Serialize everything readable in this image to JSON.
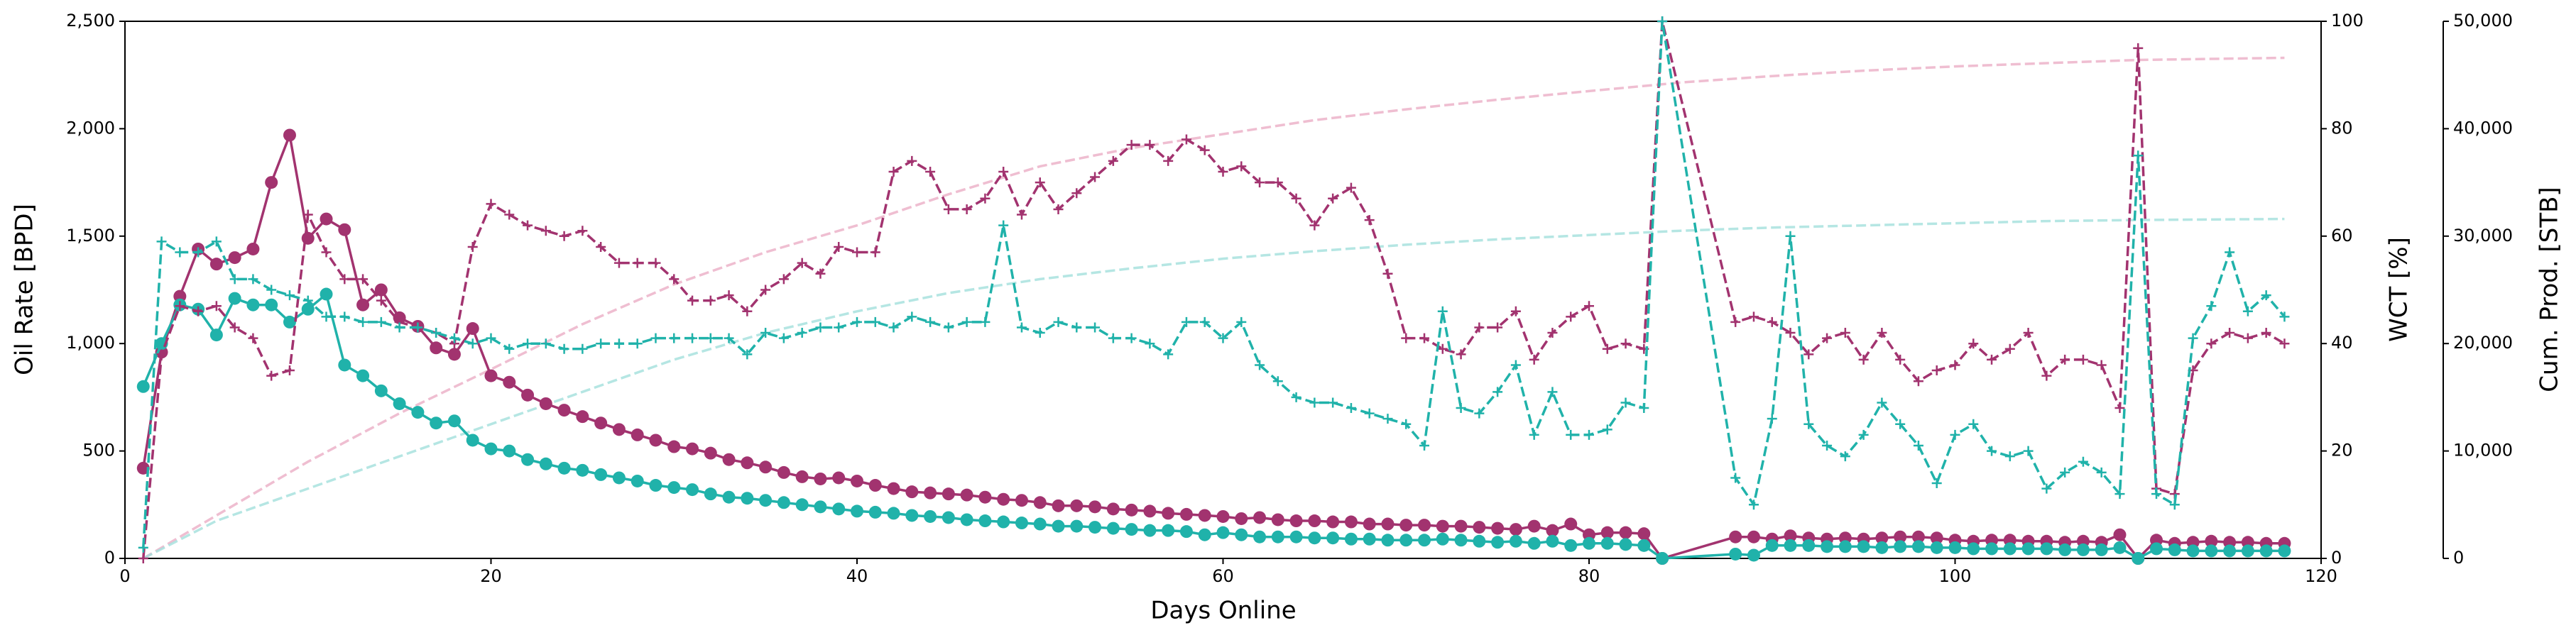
{
  "chart_data": {
    "type": "line",
    "xlabel": "Days Online",
    "ylabel": "Oil Rate [BPD]",
    "y2label": "WCT [%]",
    "y3label": "Cum. Prod. [STB]",
    "xlim": [
      0,
      120
    ],
    "xticks": [
      0,
      20,
      40,
      60,
      80,
      100,
      120
    ],
    "ylim": [
      0,
      2500
    ],
    "yticks": [
      0,
      500,
      {
        "value": 1000,
        "label": "1,000"
      },
      {
        "value": 1500,
        "label": "1,500"
      },
      {
        "value": 2000,
        "label": "2,000"
      },
      {
        "value": 2500,
        "label": "2,500"
      }
    ],
    "y2lim": [
      0,
      100
    ],
    "y2ticks": [
      0,
      20,
      40,
      60,
      80,
      100
    ],
    "y3lim": [
      0,
      50000
    ],
    "y3ticks": [
      0,
      {
        "value": 10000,
        "label": "10,000"
      },
      {
        "value": 20000,
        "label": "20,000"
      },
      {
        "value": 30000,
        "label": "30,000"
      },
      {
        "value": 40000,
        "label": "40,000"
      },
      {
        "value": 50000,
        "label": "50,000"
      }
    ],
    "grid": false,
    "x": [
      1,
      2,
      3,
      4,
      5,
      6,
      7,
      8,
      9,
      10,
      11,
      12,
      13,
      14,
      15,
      16,
      17,
      18,
      19,
      20,
      21,
      22,
      23,
      24,
      25,
      26,
      27,
      28,
      29,
      30,
      31,
      32,
      33,
      34,
      35,
      36,
      37,
      38,
      39,
      40,
      41,
      42,
      43,
      44,
      45,
      46,
      47,
      48,
      49,
      50,
      51,
      52,
      53,
      54,
      55,
      56,
      57,
      58,
      59,
      60,
      61,
      62,
      63,
      64,
      65,
      66,
      67,
      68,
      69,
      70,
      71,
      72,
      73,
      74,
      75,
      76,
      77,
      78,
      79,
      80,
      81,
      82,
      83,
      84,
      88,
      89,
      90,
      91,
      92,
      93,
      94,
      95,
      96,
      97,
      98,
      99,
      100,
      101,
      102,
      103,
      104,
      105,
      106,
      107,
      108,
      109,
      110,
      111,
      112,
      113,
      114,
      115,
      116,
      117,
      118
    ],
    "series": [
      {
        "axis": "y3",
        "color": "#e8a3bd",
        "linestyle": "dashed",
        "marker": "none",
        "alpha": 0.7,
        "x": [
          1,
          5,
          10,
          15,
          20,
          25,
          30,
          35,
          40,
          45,
          50,
          55,
          60,
          65,
          70,
          75,
          80,
          85,
          90,
          95,
          100,
          105,
          110,
          118
        ],
        "values": [
          0,
          4000,
          9000,
          13500,
          17600,
          21800,
          25500,
          28500,
          31000,
          33900,
          36500,
          38200,
          39500,
          40800,
          41800,
          42700,
          43500,
          44300,
          44900,
          45400,
          45800,
          46100,
          46400,
          46600
        ]
      },
      {
        "axis": "y3",
        "color": "#a3e0dc",
        "linestyle": "dashed",
        "marker": "none",
        "alpha": 0.8,
        "x": [
          1,
          5,
          10,
          15,
          20,
          25,
          30,
          35,
          40,
          45,
          50,
          55,
          60,
          65,
          70,
          75,
          80,
          85,
          90,
          95,
          100,
          105,
          110,
          118
        ],
        "values": [
          0,
          3500,
          6500,
          9500,
          12500,
          15500,
          18500,
          21000,
          23000,
          24700,
          26000,
          27000,
          27900,
          28600,
          29200,
          29700,
          30100,
          30500,
          30800,
          31000,
          31200,
          31400,
          31500,
          31600
        ]
      },
      {
        "axis": "y",
        "color": "#a2336f",
        "linestyle": "solid",
        "marker": "o",
        "alpha": 1,
        "values": [
          420,
          960,
          1220,
          1440,
          1370,
          1400,
          1440,
          1750,
          1970,
          1490,
          1580,
          1530,
          1180,
          1250,
          1120,
          1080,
          980,
          950,
          1070,
          850,
          820,
          760,
          720,
          690,
          660,
          630,
          600,
          575,
          550,
          520,
          510,
          490,
          460,
          445,
          425,
          400,
          380,
          370,
          375,
          360,
          340,
          325,
          310,
          305,
          300,
          295,
          285,
          275,
          270,
          260,
          245,
          245,
          240,
          230,
          225,
          220,
          210,
          205,
          200,
          195,
          185,
          190,
          180,
          175,
          175,
          170,
          170,
          160,
          160,
          155,
          155,
          150,
          150,
          145,
          140,
          135,
          150,
          130,
          160,
          110,
          120,
          120,
          115,
          0,
          100,
          100,
          90,
          105,
          95,
          90,
          95,
          90,
          95,
          100,
          100,
          95,
          85,
          80,
          85,
          85,
          80,
          80,
          75,
          80,
          75,
          110,
          0,
          85,
          70,
          75,
          80,
          75,
          75,
          70,
          70
        ]
      },
      {
        "axis": "y",
        "color": "#20b2aa",
        "linestyle": "solid",
        "marker": "o",
        "alpha": 1,
        "values": [
          800,
          1000,
          1180,
          1160,
          1040,
          1210,
          1180,
          1180,
          1100,
          1160,
          1230,
          900,
          850,
          780,
          720,
          680,
          630,
          640,
          550,
          510,
          500,
          460,
          440,
          420,
          410,
          390,
          375,
          360,
          340,
          330,
          320,
          300,
          285,
          280,
          270,
          260,
          250,
          240,
          230,
          220,
          215,
          210,
          200,
          195,
          190,
          180,
          175,
          170,
          165,
          160,
          150,
          150,
          145,
          140,
          135,
          130,
          130,
          125,
          110,
          120,
          110,
          100,
          100,
          100,
          95,
          95,
          90,
          90,
          85,
          85,
          85,
          90,
          85,
          80,
          75,
          80,
          70,
          80,
          60,
          70,
          70,
          65,
          60,
          0,
          20,
          15,
          60,
          60,
          60,
          55,
          55,
          55,
          50,
          55,
          55,
          50,
          50,
          45,
          45,
          45,
          45,
          45,
          40,
          40,
          40,
          50,
          0,
          45,
          40,
          35,
          35,
          35,
          35,
          35,
          35
        ]
      },
      {
        "axis": "y2",
        "color": "#a2336f",
        "linestyle": "dashed",
        "marker": "+",
        "alpha": 1,
        "values": [
          0,
          38,
          47,
          46,
          47,
          43,
          41,
          34,
          35,
          64,
          57,
          52,
          52,
          48,
          44,
          43,
          42,
          40,
          58,
          66,
          64,
          62,
          61,
          60,
          61,
          58,
          55,
          55,
          55,
          52,
          48,
          48,
          49,
          46,
          50,
          52,
          55,
          53,
          58,
          57,
          57,
          72,
          74,
          72,
          65,
          65,
          67,
          72,
          64,
          70,
          65,
          68,
          71,
          74,
          77,
          77,
          74,
          78,
          76,
          72,
          73,
          70,
          70,
          67,
          62,
          67,
          69,
          63,
          53,
          41,
          41,
          39,
          38,
          43,
          43,
          46,
          37,
          42,
          45,
          47,
          39,
          40,
          39,
          100,
          44,
          45,
          44,
          42,
          38,
          41,
          42,
          37,
          42,
          37,
          33,
          35,
          36,
          40,
          37,
          39,
          42,
          34,
          37,
          37,
          36,
          28,
          95,
          13,
          12,
          35,
          40,
          42,
          41,
          42,
          40
        ]
      },
      {
        "axis": "y2",
        "color": "#20b2aa",
        "linestyle": "dashed",
        "marker": "+",
        "alpha": 1,
        "values": [
          2,
          59,
          57,
          57,
          59,
          52,
          52,
          50,
          49,
          48,
          45,
          45,
          44,
          44,
          43,
          43,
          42,
          41,
          40,
          41,
          39,
          40,
          40,
          39,
          39,
          40,
          40,
          40,
          41,
          41,
          41,
          41,
          41,
          38,
          42,
          41,
          42,
          43,
          43,
          44,
          44,
          43,
          45,
          44,
          43,
          44,
          44,
          62,
          43,
          42,
          44,
          43,
          43,
          41,
          41,
          40,
          38,
          44,
          44,
          41,
          44,
          36,
          33,
          30,
          29,
          29,
          28,
          27,
          26,
          25,
          21,
          46,
          28,
          27,
          31,
          36,
          23,
          31,
          23,
          23,
          24,
          29,
          28,
          100,
          15,
          10,
          26,
          60,
          25,
          21,
          19,
          23,
          29,
          25,
          21,
          14,
          23,
          25,
          20,
          19,
          20,
          13,
          16,
          18,
          16,
          12,
          75,
          12,
          10,
          41,
          47,
          57,
          46,
          49,
          45
        ]
      }
    ]
  }
}
